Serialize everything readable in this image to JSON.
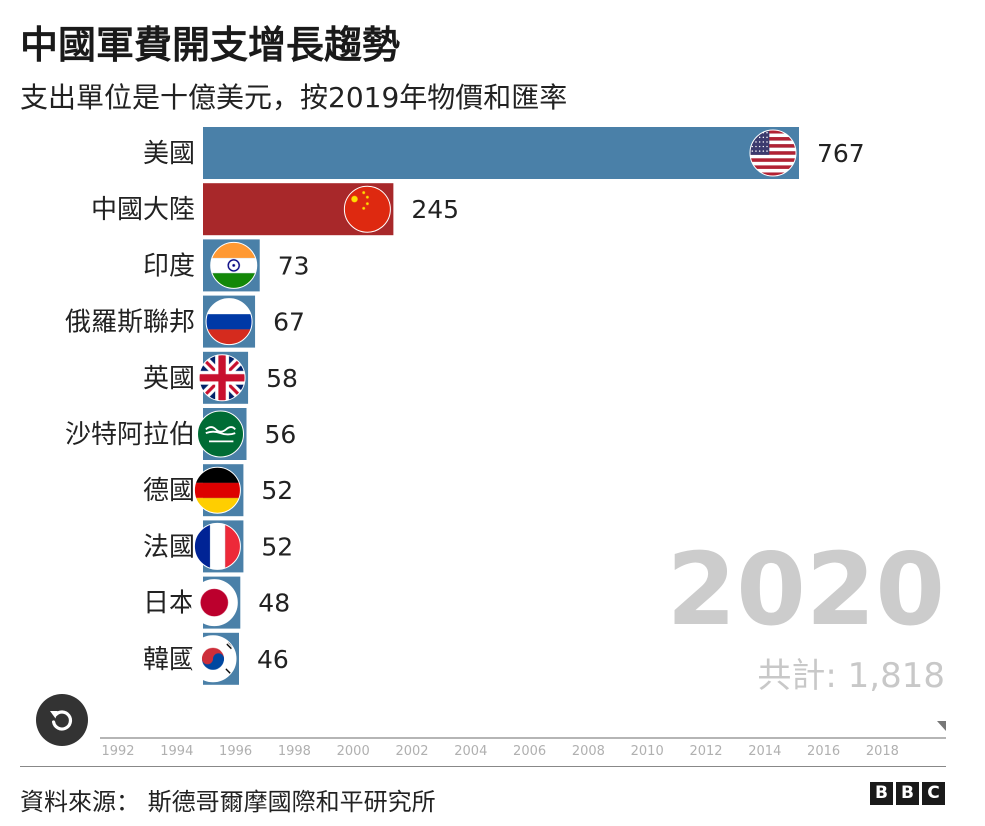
{
  "title": "中國軍費開支增長趨勢",
  "subtitle": "支出單位是十億美元，按2019年物價和匯率",
  "year": "2020",
  "total_label": "共計: 1,818",
  "source": "資料來源：  斯德哥爾摩國際和平研究所",
  "brand": [
    "B",
    "B",
    "C"
  ],
  "icons": {
    "replay": "replay-icon"
  },
  "chart_data": {
    "type": "bar",
    "orientation": "horizontal",
    "categories": [
      "美國",
      "中國大陸",
      "印度",
      "俄羅斯聯邦",
      "英國",
      "沙特阿拉伯",
      "德國",
      "法國",
      "日本",
      "韓國"
    ],
    "values": [
      767,
      245,
      73,
      67,
      58,
      56,
      52,
      52,
      48,
      46
    ],
    "value_labels": [
      "767",
      "245",
      "73",
      "67",
      "58",
      "56",
      "52",
      "52",
      "48",
      "46"
    ],
    "flags": [
      "usa",
      "china",
      "india",
      "russia",
      "uk",
      "saudi",
      "germany",
      "france",
      "japan",
      "korea"
    ],
    "colors": {
      "default": "#4a80a8",
      "highlight": "#a8282a"
    },
    "highlight_index": 1,
    "xlim": [
      0,
      767
    ],
    "timeline_ticks": [
      "1992",
      "1994",
      "1996",
      "1998",
      "2000",
      "2002",
      "2004",
      "2006",
      "2008",
      "2010",
      "2012",
      "2014",
      "2016",
      "2018"
    ]
  }
}
